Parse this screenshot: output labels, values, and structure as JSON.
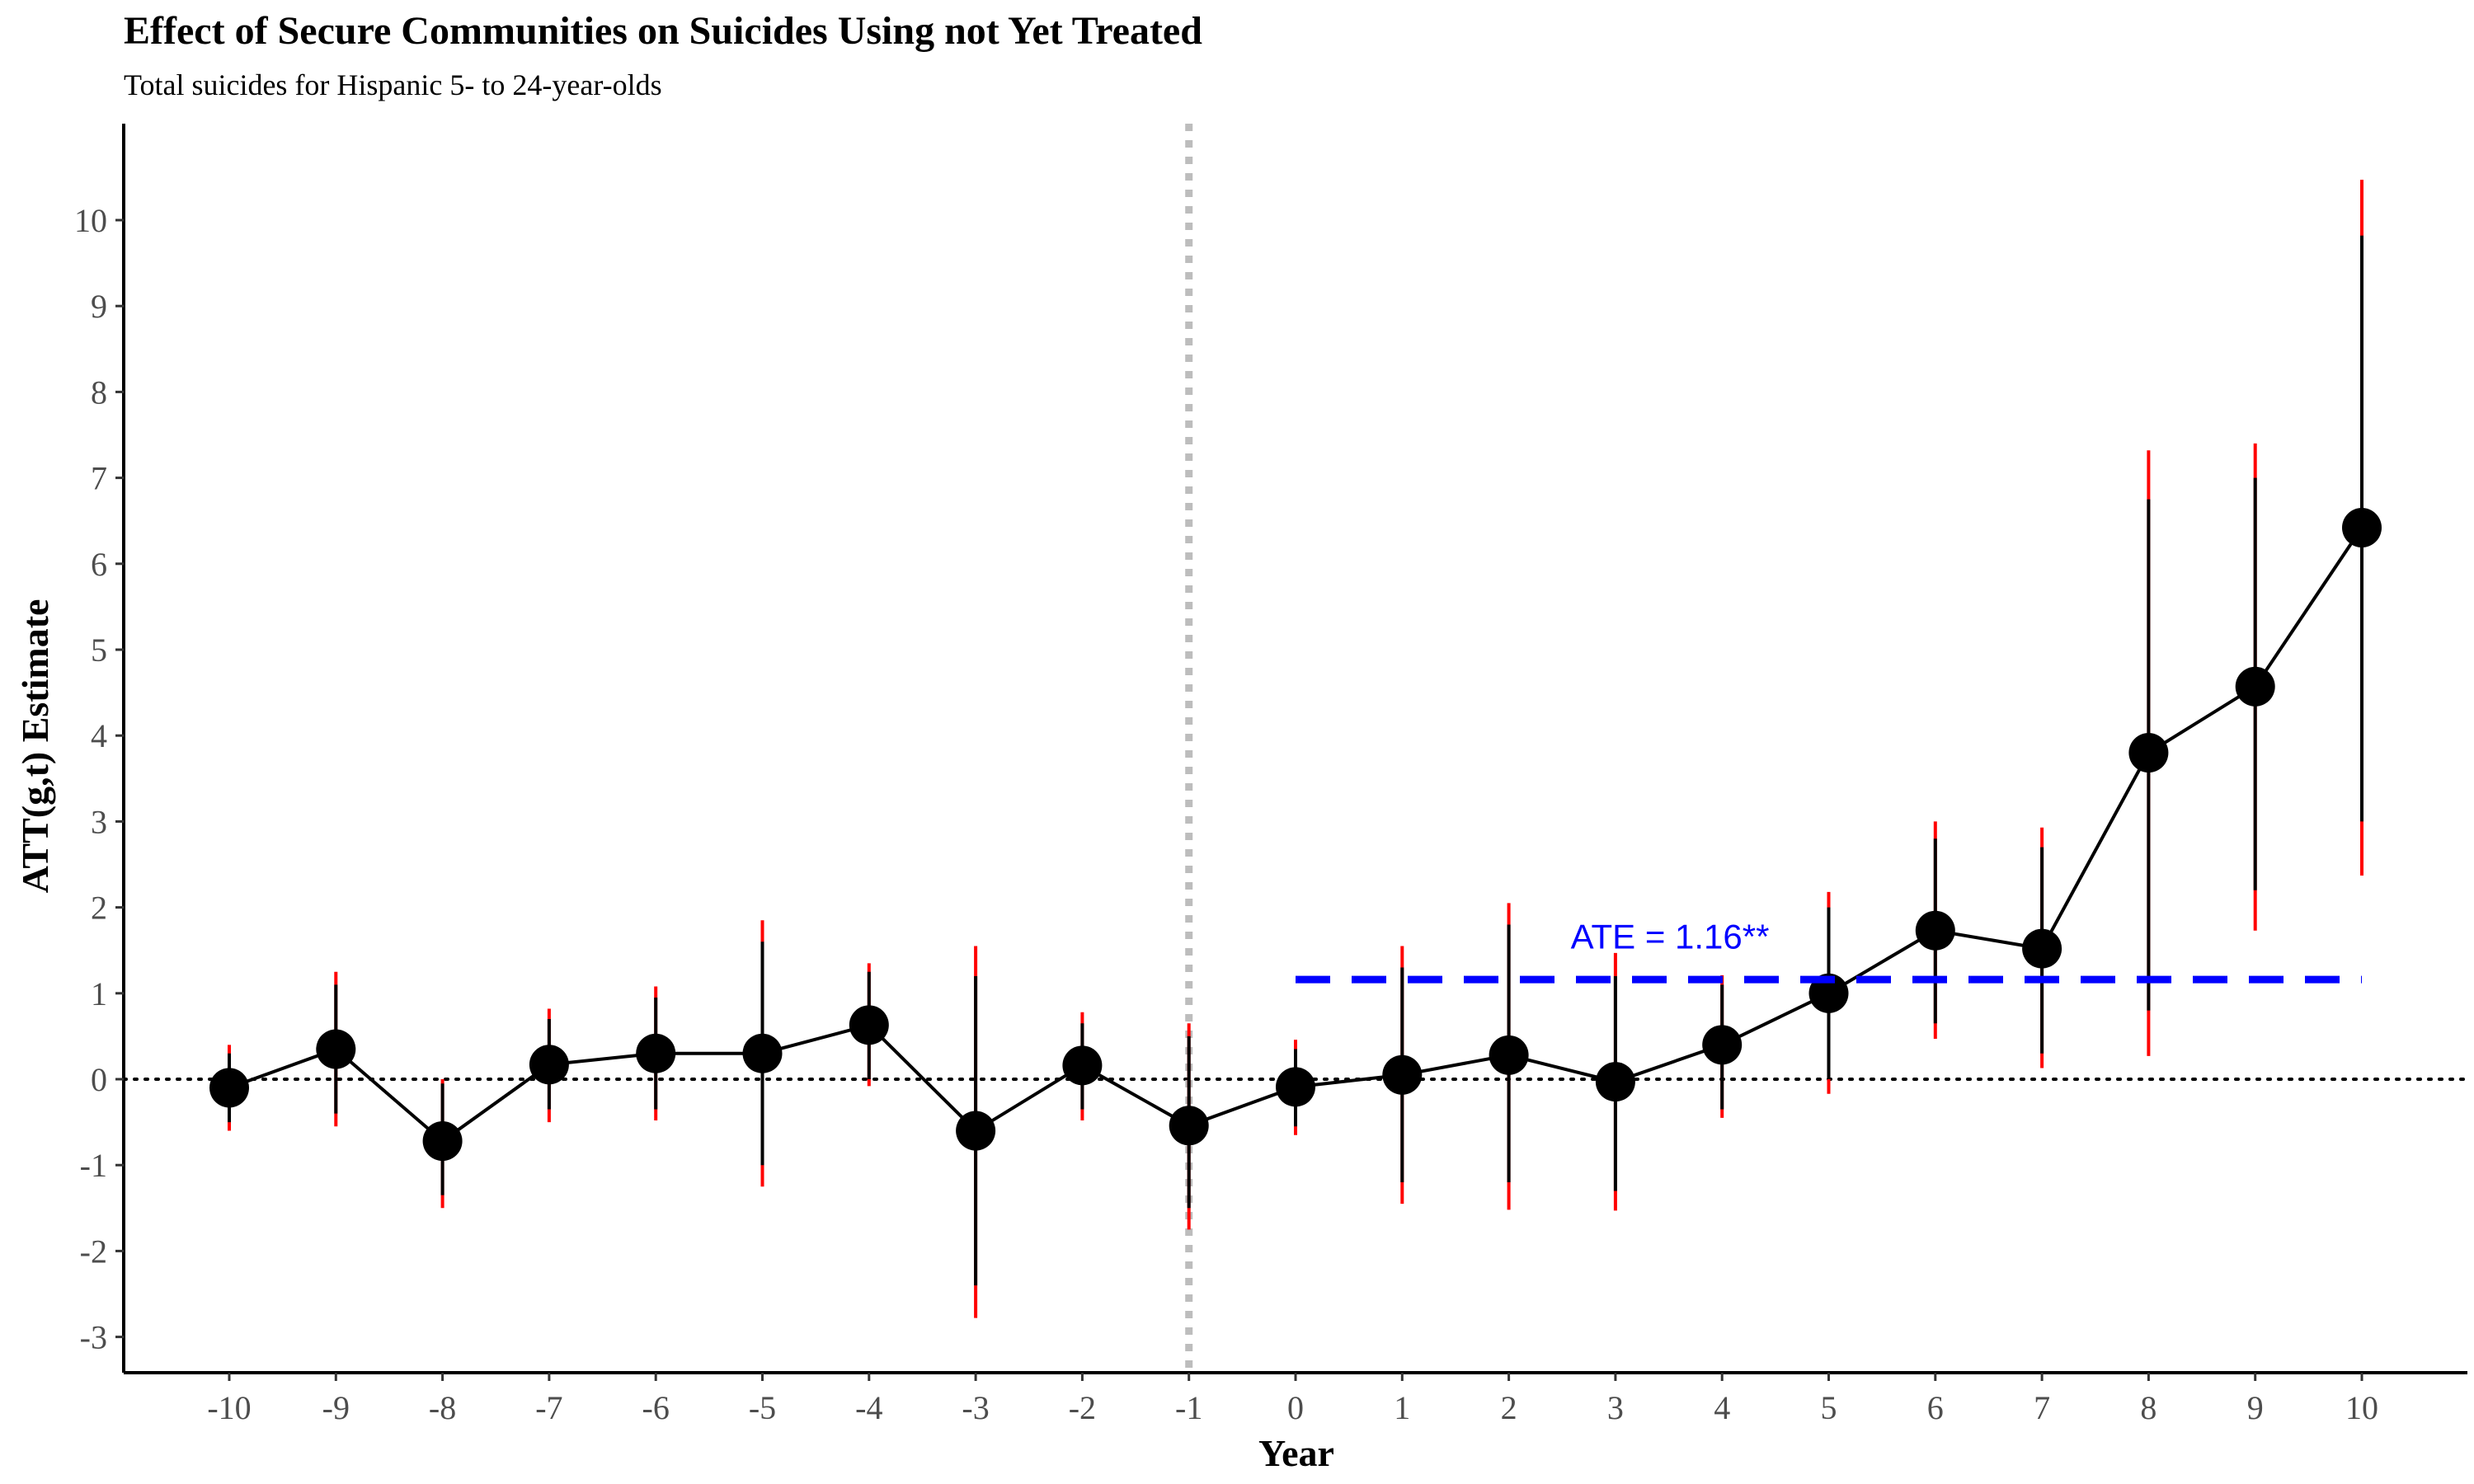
{
  "chart_data": {
    "type": "scatter",
    "title": "Effect of Secure Communities on Suicides Using not Yet Treated",
    "subtitle": "Total suicides for Hispanic 5- to 24-year-olds",
    "xlabel": "Year",
    "ylabel": "ATT(g,t) Estimate",
    "xlim": [
      -11,
      11
    ],
    "ylim": [
      -3.4,
      11.0
    ],
    "x_ticks": [
      -10,
      -9,
      -8,
      -7,
      -6,
      -5,
      -4,
      -3,
      -2,
      -1,
      0,
      1,
      2,
      3,
      4,
      5,
      6,
      7,
      8,
      9,
      10
    ],
    "y_ticks": [
      -3,
      -2,
      -1,
      0,
      1,
      2,
      3,
      4,
      5,
      6,
      7,
      8,
      9,
      10
    ],
    "grid": false,
    "series": [
      {
        "x": [
          -10,
          -9,
          -8,
          -7,
          -6,
          -5,
          -4,
          -3,
          -2,
          -1,
          0,
          1,
          2,
          3,
          4,
          5,
          6,
          7,
          8,
          9,
          10
        ],
        "y": [
          -0.1,
          0.35,
          -0.72,
          0.17,
          0.3,
          0.3,
          0.63,
          -0.6,
          0.16,
          -0.54,
          -0.09,
          0.05,
          0.28,
          -0.03,
          0.4,
          1.0,
          1.73,
          1.52,
          3.8,
          4.57,
          6.42
        ],
        "ci_lower": [
          -0.6,
          -0.55,
          -1.5,
          -0.5,
          -0.48,
          -1.25,
          -0.08,
          -2.78,
          -0.48,
          -1.75,
          -0.65,
          -1.45,
          -1.52,
          -1.53,
          -0.45,
          -0.17,
          0.47,
          0.13,
          0.27,
          1.73,
          2.37
        ],
        "ci_upper": [
          0.4,
          1.25,
          0.0,
          0.82,
          1.08,
          1.85,
          1.35,
          1.55,
          0.78,
          0.65,
          0.46,
          1.55,
          2.05,
          1.47,
          1.21,
          2.18,
          3.0,
          2.93,
          7.32,
          7.4,
          10.47
        ],
        "ci_inner_lower": [
          -0.5,
          -0.4,
          -1.35,
          -0.35,
          -0.35,
          -1.0,
          0.0,
          -2.4,
          -0.35,
          -1.5,
          -0.55,
          -1.2,
          -1.2,
          -1.3,
          -0.35,
          0.0,
          0.65,
          0.3,
          0.8,
          2.2,
          3.0
        ],
        "ci_inner_upper": [
          0.3,
          1.1,
          -0.05,
          0.7,
          0.95,
          1.6,
          1.25,
          1.2,
          0.65,
          0.5,
          0.35,
          1.3,
          1.8,
          1.2,
          1.1,
          2.0,
          2.8,
          2.7,
          6.75,
          7.0,
          9.82
        ]
      }
    ],
    "reference_lines": {
      "zero_y": 0,
      "treatment_x": -1
    },
    "ate": {
      "label": "ATE = 1.16**",
      "value": 1.16,
      "x_start": 0,
      "x_end": 10
    },
    "colors": {
      "points": "#000000",
      "ci_outer": "#ff0000",
      "ci_inner": "#000000",
      "ate_line": "#0000ff",
      "treatment_line": "#bdbdbd",
      "tick_text": "#4d4d4d"
    }
  }
}
